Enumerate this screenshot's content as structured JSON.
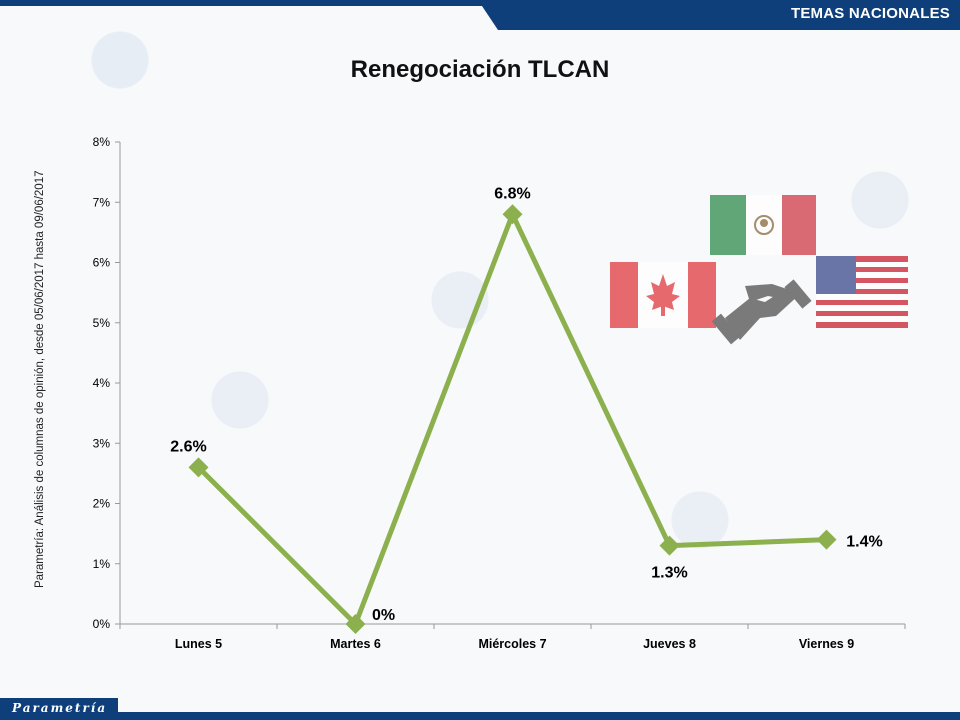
{
  "header": {
    "section_label": "TEMAS NACIONALES"
  },
  "footer": {
    "brand": "Parametría"
  },
  "chart_data": {
    "type": "line",
    "title": "Renegociación TLCAN",
    "ylabel": "Parametría: Análisis de columnas de opinión, desde 05/06/2017 hasta 09/06/2017",
    "xlabel": "",
    "categories": [
      "Lunes 5",
      "Martes 6",
      "Miércoles 7",
      "Jueves 8",
      "Viernes 9"
    ],
    "series": [
      {
        "values": [
          2.6,
          0,
          6.8,
          1.3,
          1.4
        ]
      }
    ],
    "data_labels": [
      "2.6%",
      "0%",
      "6.8%",
      "1.3%",
      "1.4%"
    ],
    "yticks": [
      "0%",
      "1%",
      "2%",
      "3%",
      "4%",
      "5%",
      "6%",
      "7%",
      "8%"
    ],
    "ylim": [
      0,
      8
    ],
    "grid": false,
    "legend": "none",
    "line_color": "#8db04e",
    "axis_color": "#9a9a9a"
  },
  "illustration": {
    "icons": [
      "mexico-flag-icon",
      "canada-flag-icon",
      "usa-flag-icon",
      "handshake-icon"
    ]
  },
  "colors": {
    "brand_blue": "#0e3f7a"
  }
}
